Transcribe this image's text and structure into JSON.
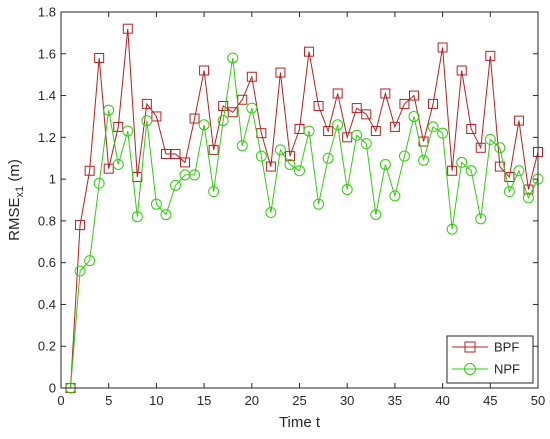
{
  "chart_data": {
    "type": "line",
    "title": "",
    "xlabel": "Time t",
    "ylabel_main": "RMSE",
    "ylabel_sub": "x1",
    "ylabel_unit": " (m)",
    "xlim": [
      0,
      50
    ],
    "ylim": [
      0,
      1.8
    ],
    "xticks": [
      "0",
      "5",
      "10",
      "15",
      "20",
      "25",
      "30",
      "35",
      "40",
      "45",
      "50"
    ],
    "yticks": [
      "0",
      "0.2",
      "0.4",
      "0.6",
      "0.8",
      "1",
      "1.2",
      "1.4",
      "1.6",
      "1.8"
    ],
    "grid": false,
    "legend_position": "bottom-right",
    "x": [
      1,
      2,
      3,
      4,
      5,
      6,
      7,
      8,
      9,
      10,
      11,
      12,
      13,
      14,
      15,
      16,
      17,
      18,
      19,
      20,
      21,
      22,
      23,
      24,
      25,
      26,
      27,
      28,
      29,
      30,
      31,
      32,
      33,
      34,
      35,
      36,
      37,
      38,
      39,
      40,
      41,
      42,
      43,
      44,
      45,
      46,
      47,
      48,
      49,
      50
    ],
    "series": [
      {
        "name": "BPF",
        "color": "#b22222",
        "marker": "square",
        "values": [
          0.0,
          0.78,
          1.04,
          1.58,
          1.05,
          1.25,
          1.72,
          1.01,
          1.36,
          1.3,
          1.12,
          1.12,
          1.08,
          1.29,
          1.52,
          1.14,
          1.35,
          1.32,
          1.38,
          1.49,
          1.22,
          1.06,
          1.51,
          1.11,
          1.24,
          1.61,
          1.35,
          1.23,
          1.41,
          1.2,
          1.34,
          1.31,
          1.23,
          1.41,
          1.25,
          1.36,
          1.4,
          1.18,
          1.36,
          1.63,
          1.04,
          1.52,
          1.24,
          1.15,
          1.59,
          1.06,
          1.01,
          1.28,
          0.95,
          1.13
        ]
      },
      {
        "name": "NPF",
        "color": "#33cc11",
        "marker": "circle",
        "values": [
          0.0,
          0.56,
          0.61,
          0.98,
          1.33,
          1.07,
          1.23,
          0.82,
          1.28,
          0.88,
          0.83,
          0.97,
          1.02,
          1.02,
          1.26,
          0.94,
          1.28,
          1.58,
          1.16,
          1.34,
          1.11,
          0.84,
          1.14,
          1.07,
          1.04,
          1.23,
          0.88,
          1.1,
          1.26,
          0.95,
          1.21,
          1.17,
          0.83,
          1.07,
          0.92,
          1.11,
          1.3,
          1.09,
          1.25,
          1.22,
          0.76,
          1.08,
          1.04,
          0.81,
          1.19,
          1.15,
          0.94,
          1.04,
          0.91,
          1.0
        ]
      }
    ]
  }
}
